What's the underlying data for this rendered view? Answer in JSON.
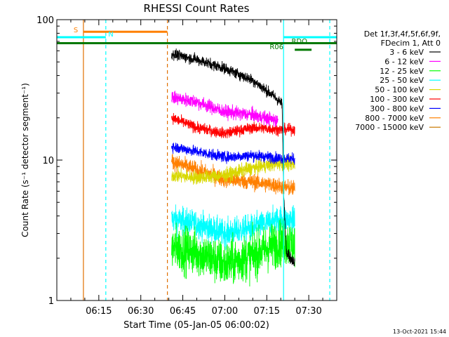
{
  "chart_data": {
    "type": "line",
    "title": "RHESSI Count Rates",
    "xlabel": "Start Time (05-Jan-05 06:00:02)",
    "ylabel": "Count Rate (s⁻¹ detector segment⁻¹)",
    "yscale": "log",
    "ylim": [
      1,
      100
    ],
    "xlim_minutes": [
      0,
      100
    ],
    "x_ticks": [
      "06:15",
      "06:30",
      "06:45",
      "07:00",
      "07:15",
      "07:30"
    ],
    "y_ticks": [
      "1",
      "10",
      "100"
    ],
    "legend_header": [
      "Det 1f,3f,4f,5f,6f,9f,",
      "FDecim 1, Att 0"
    ],
    "legend_position": "right",
    "footer_timestamp": "13-Oct-2021 15:44",
    "data_window_minutes": [
      41,
      85
    ],
    "series": [
      {
        "name": "3 - 6 keV",
        "color": "#000000",
        "x": [
          41,
          50,
          60,
          70,
          78,
          80.5,
          81,
          82,
          84
        ],
        "values": [
          57,
          52,
          45,
          37,
          28,
          25,
          6,
          2.3,
          1.9
        ],
        "noise": 0.04
      },
      {
        "name": "6 - 12 keV",
        "color": "#ff00ff",
        "x": [
          41,
          50,
          60,
          70,
          79
        ],
        "values": [
          28,
          26,
          22,
          21,
          19
        ],
        "noise": 0.05,
        "xmax": 79
      },
      {
        "name": "12 - 25 keV",
        "color": "#00ff00",
        "x": [
          41,
          50,
          60,
          70,
          80,
          85
        ],
        "values": [
          2.4,
          2.2,
          1.8,
          2.1,
          2.6,
          2.5
        ],
        "noise": 0.17
      },
      {
        "name": "25 - 50 keV",
        "color": "#00ffff",
        "x": [
          41,
          50,
          60,
          70,
          80,
          85
        ],
        "values": [
          3.8,
          3.5,
          3.0,
          3.3,
          3.8,
          3.7
        ],
        "noise": 0.1
      },
      {
        "name": "50 - 100 keV",
        "color": "#d8d800",
        "x": [
          41,
          50,
          60,
          70,
          80,
          85
        ],
        "values": [
          7.8,
          7.5,
          7.8,
          8.8,
          9.5,
          9.3
        ],
        "noise": 0.05
      },
      {
        "name": "100 - 300 keV",
        "color": "#ff0000",
        "x": [
          41,
          50,
          60,
          70,
          80,
          85
        ],
        "values": [
          20,
          17,
          15.5,
          17,
          16.5,
          16.5
        ],
        "noise": 0.04
      },
      {
        "name": "300 - 800 keV",
        "color": "#0000ff",
        "x": [
          41,
          50,
          60,
          70,
          80,
          85
        ],
        "values": [
          12.5,
          11.5,
          10.5,
          10.8,
          10.3,
          10.2
        ],
        "noise": 0.04
      },
      {
        "name": "800 - 7000 keV",
        "color": "#ff8000",
        "x": [
          41,
          50,
          60,
          70,
          80,
          85
        ],
        "values": [
          9.8,
          8.5,
          7.3,
          7.0,
          6.5,
          6.2
        ],
        "noise": 0.06
      },
      {
        "name": "7000 - 15000 keV",
        "color": "#c87800",
        "x": [],
        "values": []
      }
    ],
    "vertical_lines": [
      {
        "x": 9.5,
        "color": "#e07000",
        "style": "solid"
      },
      {
        "x": 17.5,
        "color": "#00ffff",
        "style": "dashed"
      },
      {
        "x": 39.5,
        "color": "#e07000",
        "style": "dashed"
      },
      {
        "x": 81,
        "color": "#00ffff",
        "style": "solid"
      },
      {
        "x": 97.5,
        "color": "#00ffff",
        "style": "dashed"
      }
    ],
    "flag_bars": [
      {
        "label": "S",
        "color": "#ff8000",
        "x_start": 9.5,
        "x_end": 39.5,
        "y": 82
      },
      {
        "label": "N",
        "color": "#00ffff",
        "x_start": 0,
        "x_end": 17.5,
        "y": 75
      },
      {
        "label": "",
        "color": "#00ffff",
        "x_start": 81,
        "x_end": 100,
        "y": 75
      },
      {
        "label": "RDO",
        "color": "#00ffff",
        "x_start": 0,
        "x_end": 100,
        "y": 68,
        "label_color": "#007800"
      },
      {
        "label": "RDO",
        "color": "#007800",
        "x_start": 0,
        "x_end": 100,
        "y": 68
      },
      {
        "label": "R06",
        "color": "#007800",
        "x_start": 85,
        "x_end": 91,
        "y": 61
      }
    ],
    "grid": false
  }
}
